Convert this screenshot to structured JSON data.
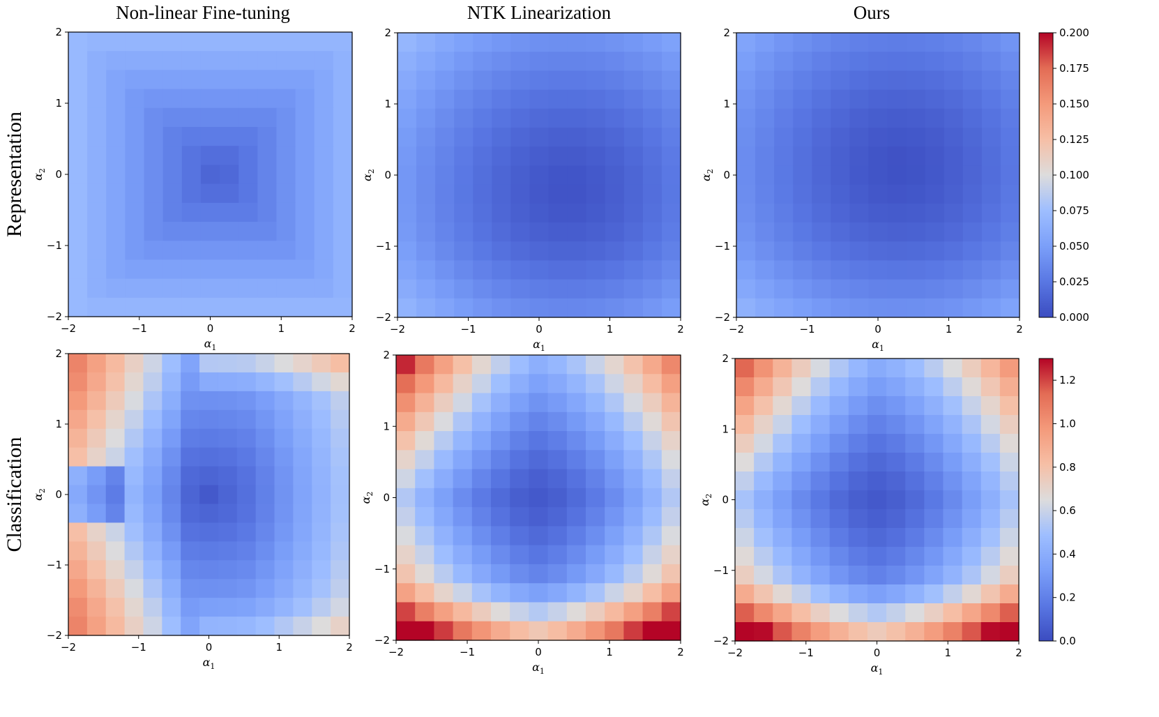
{
  "chart_data": [
    {
      "type": "heatmap",
      "panel": "rep-nonlinear",
      "title": "Non-linear Fine-tuning",
      "row_label": "Representation",
      "xlabel": "α1",
      "ylabel": "α2",
      "xlim": [
        -2,
        2
      ],
      "ylim": [
        -2,
        2
      ],
      "xticks": [
        "−2",
        "−1",
        "0",
        "1",
        "2"
      ],
      "yticks": [
        "−2",
        "−1",
        "0",
        "1",
        "2"
      ],
      "grid_size": 15,
      "vrange": [
        0,
        0.2
      ],
      "surface": {
        "kind": "radial",
        "base": 0.012,
        "gain": 0.03,
        "center": [
          0.1,
          0.0
        ],
        "power": 1.0,
        "norm": "max"
      }
    },
    {
      "type": "heatmap",
      "panel": "rep-ntk",
      "title": "NTK Linearization",
      "xlabel": "α1",
      "ylabel": "α2",
      "xlim": [
        -2,
        2
      ],
      "ylim": [
        -2,
        2
      ],
      "xticks": [
        "−2",
        "−1",
        "0",
        "1",
        "2"
      ],
      "yticks": [
        "−2",
        "−1",
        "0",
        "1",
        "2"
      ],
      "grid_size": 15,
      "vrange": [
        0,
        0.2
      ],
      "surface": {
        "kind": "radial",
        "base": 0.004,
        "gain": 0.012,
        "center": [
          0.4,
          -0.2
        ],
        "power": 1.5,
        "norm": "euclid",
        "bottom_boost": 0.006
      }
    },
    {
      "type": "heatmap",
      "panel": "rep-ours",
      "title": "Ours",
      "xlabel": "α1",
      "ylabel": "α2",
      "xlim": [
        -2,
        2
      ],
      "ylim": [
        -2,
        2
      ],
      "xticks": [
        "−2",
        "−1",
        "0",
        "1",
        "2"
      ],
      "yticks": [
        "−2",
        "−1",
        "0",
        "1",
        "2"
      ],
      "grid_size": 15,
      "vrange": [
        0,
        0.2
      ],
      "surface": {
        "kind": "radial",
        "base": 0.003,
        "gain": 0.011,
        "center": [
          0.3,
          0.1
        ],
        "power": 1.5,
        "norm": "euclid",
        "bottom_boost": 0.007
      }
    },
    {
      "type": "heatmap",
      "panel": "cls-nonlinear",
      "row_label": "Classification",
      "xlabel": "α1",
      "ylabel": "α2",
      "xlim": [
        -2,
        2
      ],
      "ylim": [
        -2,
        2
      ],
      "xticks": [
        "−2",
        "−1",
        "0",
        "1",
        "2"
      ],
      "yticks": [
        "−2",
        "−1",
        "0",
        "1",
        "2"
      ],
      "grid_size": 15,
      "vrange": [
        0,
        1.3
      ],
      "surface": {
        "kind": "nonlinear_cls"
      }
    },
    {
      "type": "heatmap",
      "panel": "cls-ntk",
      "xlabel": "α1",
      "ylabel": "α2",
      "xlim": [
        -2,
        2
      ],
      "ylim": [
        -2,
        2
      ],
      "xticks": [
        "−2",
        "−1",
        "0",
        "1",
        "2"
      ],
      "yticks": [
        "−2",
        "−1",
        "0",
        "1",
        "2"
      ],
      "grid_size": 15,
      "vrange": [
        0,
        1.3
      ],
      "surface": {
        "kind": "cross",
        "base": 0.05,
        "ax": 0.18,
        "ay": 0.15,
        "px": 1.6,
        "py": 1.4,
        "cross": 0.04,
        "bottom": 0.55,
        "bottom_start": -1.2,
        "bottom_k": 1.1,
        "sym_left": 0.12
      }
    },
    {
      "type": "heatmap",
      "panel": "cls-ours",
      "xlabel": "α1",
      "ylabel": "α2",
      "xlim": [
        -2,
        2
      ],
      "ylim": [
        -2,
        2
      ],
      "xticks": [
        "−2",
        "−1",
        "0",
        "1",
        "2"
      ],
      "yticks": [
        "−2",
        "−1",
        "0",
        "1",
        "2"
      ],
      "grid_size": 15,
      "vrange": [
        0,
        1.3
      ],
      "surface": {
        "kind": "cross",
        "base": 0.05,
        "ax": 0.17,
        "ay": 0.14,
        "px": 1.6,
        "py": 1.4,
        "cross": 0.035,
        "bottom": 0.55,
        "bottom_start": -1.2,
        "bottom_k": 1.0,
        "sym_left": 0.1
      }
    }
  ],
  "colorbars": [
    {
      "name": "colorbar-representation",
      "vrange": [
        0,
        0.2
      ],
      "ticks": [
        "0.000",
        "0.025",
        "0.050",
        "0.075",
        "0.100",
        "0.125",
        "0.150",
        "0.175",
        "0.200"
      ]
    },
    {
      "name": "colorbar-classification",
      "vrange": [
        0,
        1.3
      ],
      "ticks": [
        "0.0",
        "0.2",
        "0.4",
        "0.6",
        "0.8",
        "1.0",
        "1.2"
      ],
      "tick_values": [
        0,
        0.2,
        0.4,
        0.6,
        0.8,
        1.0,
        1.2
      ]
    }
  ],
  "colormap": {
    "name": "coolwarm",
    "stops": [
      [
        0.0,
        "#3b4cc0"
      ],
      [
        0.125,
        "#5977e3"
      ],
      [
        0.25,
        "#7b9ff9"
      ],
      [
        0.375,
        "#9ebeff"
      ],
      [
        0.5,
        "#dddcdc"
      ],
      [
        0.625,
        "#f6bfa6"
      ],
      [
        0.75,
        "#f49a7b"
      ],
      [
        0.875,
        "#e36c55"
      ],
      [
        1.0,
        "#b40426"
      ]
    ]
  }
}
